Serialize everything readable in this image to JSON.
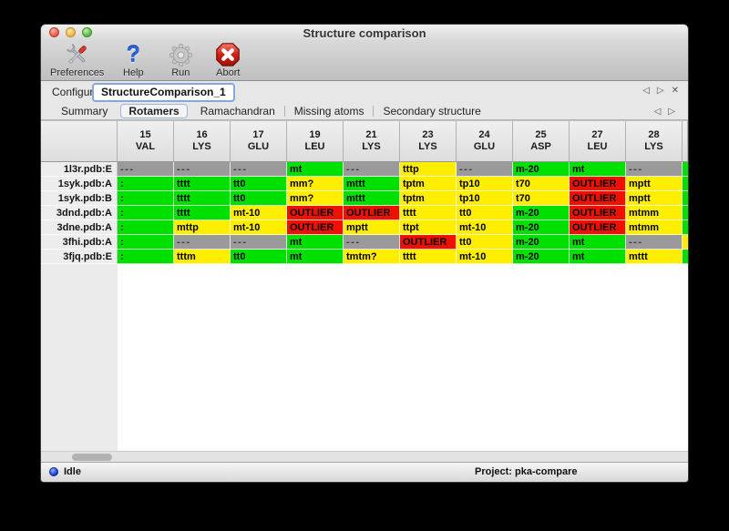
{
  "window": {
    "title": "Structure comparison"
  },
  "toolbar": {
    "buttons": [
      {
        "label": "Preferences",
        "icon": "tools-icon"
      },
      {
        "label": "Help",
        "icon": "help-icon"
      },
      {
        "label": "Run",
        "icon": "gear-icon"
      },
      {
        "label": "Abort",
        "icon": "abort-icon"
      }
    ]
  },
  "configure": {
    "label": "Configure",
    "instance": "StructureComparison_1",
    "pager": {
      "prev": "◁",
      "next": "▷",
      "close": "✕"
    }
  },
  "tabs": [
    {
      "label": "Summary",
      "selected": false
    },
    {
      "label": "Rotamers",
      "selected": true
    },
    {
      "label": "Ramachandran",
      "selected": false
    },
    {
      "label": "Missing atoms",
      "selected": false
    },
    {
      "label": "Secondary structure",
      "selected": false
    }
  ],
  "table": {
    "columns": [
      {
        "num": "15",
        "res": "VAL"
      },
      {
        "num": "16",
        "res": "LYS"
      },
      {
        "num": "17",
        "res": "GLU"
      },
      {
        "num": "19",
        "res": "LEU"
      },
      {
        "num": "21",
        "res": "LYS"
      },
      {
        "num": "23",
        "res": "LYS"
      },
      {
        "num": "24",
        "res": "GLU"
      },
      {
        "num": "25",
        "res": "ASP"
      },
      {
        "num": "27",
        "res": "LEU"
      },
      {
        "num": "28",
        "res": "LYS"
      }
    ],
    "rows": [
      {
        "label": "1l3r.pdb:E",
        "edge": "green",
        "cells": [
          {
            "t": "---",
            "c": "gray"
          },
          {
            "t": "---",
            "c": "gray"
          },
          {
            "t": "---",
            "c": "gray"
          },
          {
            "t": "mt",
            "c": "green"
          },
          {
            "t": "---",
            "c": "gray"
          },
          {
            "t": "tttp",
            "c": "yellow"
          },
          {
            "t": "---",
            "c": "gray"
          },
          {
            "t": "m-20",
            "c": "green"
          },
          {
            "t": "mt",
            "c": "green"
          },
          {
            "t": "---",
            "c": "gray"
          }
        ]
      },
      {
        "label": "1syk.pdb:A",
        "edge": "green",
        "cells": [
          {
            "t": ":",
            "c": "green"
          },
          {
            "t": "tttt",
            "c": "green"
          },
          {
            "t": "tt0",
            "c": "green"
          },
          {
            "t": "mm?",
            "c": "yellow"
          },
          {
            "t": "mttt",
            "c": "green"
          },
          {
            "t": "tptm",
            "c": "yellow"
          },
          {
            "t": "tp10",
            "c": "yellow"
          },
          {
            "t": "t70",
            "c": "yellow"
          },
          {
            "t": "OUTLIER",
            "c": "red"
          },
          {
            "t": "mptt",
            "c": "yellow"
          }
        ]
      },
      {
        "label": "1syk.pdb:B",
        "edge": "green",
        "cells": [
          {
            "t": ":",
            "c": "green"
          },
          {
            "t": "tttt",
            "c": "green"
          },
          {
            "t": "tt0",
            "c": "green"
          },
          {
            "t": "mm?",
            "c": "yellow"
          },
          {
            "t": "mttt",
            "c": "green"
          },
          {
            "t": "tptm",
            "c": "yellow"
          },
          {
            "t": "tp10",
            "c": "yellow"
          },
          {
            "t": "t70",
            "c": "yellow"
          },
          {
            "t": "OUTLIER",
            "c": "red"
          },
          {
            "t": "mptt",
            "c": "yellow"
          }
        ]
      },
      {
        "label": "3dnd.pdb:A",
        "edge": "green",
        "cells": [
          {
            "t": ":",
            "c": "green"
          },
          {
            "t": "tttt",
            "c": "green"
          },
          {
            "t": "mt-10",
            "c": "yellow"
          },
          {
            "t": "OUTLIER",
            "c": "red"
          },
          {
            "t": "OUTLIER",
            "c": "red"
          },
          {
            "t": "tttt",
            "c": "yellow"
          },
          {
            "t": "tt0",
            "c": "yellow"
          },
          {
            "t": "m-20",
            "c": "green"
          },
          {
            "t": "OUTLIER",
            "c": "red"
          },
          {
            "t": "mtmm",
            "c": "yellow"
          }
        ]
      },
      {
        "label": "3dne.pdb:A",
        "edge": "green",
        "cells": [
          {
            "t": ":",
            "c": "green"
          },
          {
            "t": "mttp",
            "c": "yellow"
          },
          {
            "t": "mt-10",
            "c": "yellow"
          },
          {
            "t": "OUTLIER",
            "c": "red"
          },
          {
            "t": "mptt",
            "c": "yellow"
          },
          {
            "t": "ttpt",
            "c": "yellow"
          },
          {
            "t": "mt-10",
            "c": "yellow"
          },
          {
            "t": "m-20",
            "c": "green"
          },
          {
            "t": "OUTLIER",
            "c": "red"
          },
          {
            "t": "mtmm",
            "c": "yellow"
          }
        ]
      },
      {
        "label": "3fhi.pdb:A",
        "edge": "yellow",
        "cells": [
          {
            "t": ":",
            "c": "green"
          },
          {
            "t": "---",
            "c": "gray"
          },
          {
            "t": "---",
            "c": "gray"
          },
          {
            "t": "mt",
            "c": "green"
          },
          {
            "t": "---",
            "c": "gray"
          },
          {
            "t": "OUTLIER",
            "c": "red"
          },
          {
            "t": "tt0",
            "c": "yellow"
          },
          {
            "t": "m-20",
            "c": "green"
          },
          {
            "t": "mt",
            "c": "green"
          },
          {
            "t": "---",
            "c": "gray"
          }
        ]
      },
      {
        "label": "3fjq.pdb:E",
        "edge": "green",
        "cells": [
          {
            "t": ":",
            "c": "green"
          },
          {
            "t": "tttm",
            "c": "yellow"
          },
          {
            "t": "tt0",
            "c": "green"
          },
          {
            "t": "mt",
            "c": "green"
          },
          {
            "t": "tmtm?",
            "c": "yellow"
          },
          {
            "t": "tttt",
            "c": "yellow"
          },
          {
            "t": "mt-10",
            "c": "yellow"
          },
          {
            "t": "m-20",
            "c": "green"
          },
          {
            "t": "mt",
            "c": "green"
          },
          {
            "t": "mttt",
            "c": "yellow"
          }
        ]
      }
    ]
  },
  "statusbar": {
    "status_label": "Idle",
    "project_label": "Project: pka-compare"
  },
  "colors": {
    "green": "#00e000",
    "yellow": "#ffee00",
    "red": "#ee1100",
    "gray": "#9a9a9a"
  }
}
